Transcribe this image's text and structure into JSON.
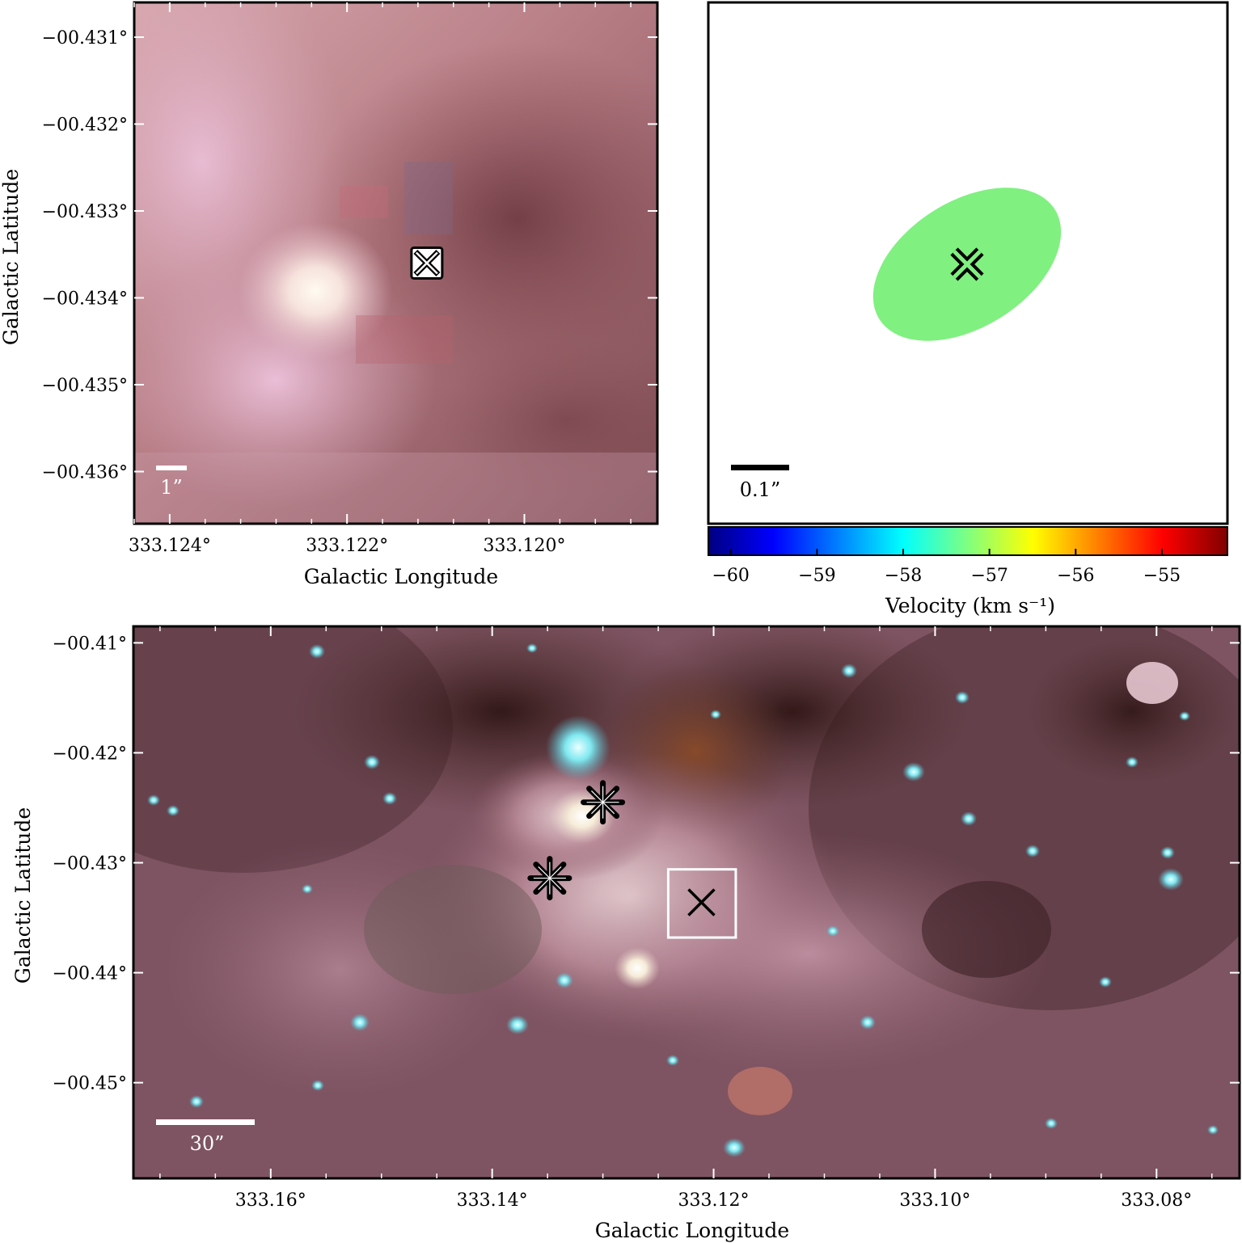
{
  "panels": {
    "top_left": {
      "ylabel": "Galactic Latitude",
      "xlabel": "Galactic Longitude",
      "yticks": [
        {
          "value": -0.431,
          "label": "−00.431°"
        },
        {
          "value": -0.432,
          "label": "−00.432°"
        },
        {
          "value": -0.433,
          "label": "−00.433°"
        },
        {
          "value": -0.434,
          "label": "−00.434°"
        },
        {
          "value": -0.435,
          "label": "−00.435°"
        },
        {
          "value": -0.436,
          "label": "−00.436°"
        }
      ],
      "xticks": [
        {
          "value": 333.124,
          "label": "333.124°"
        },
        {
          "value": 333.122,
          "label": "333.122°"
        },
        {
          "value": 333.12,
          "label": "333.120°"
        }
      ],
      "scale_bar": "1”"
    },
    "top_right": {
      "scale_bar": "0.1”",
      "colorbar": {
        "label": "Velocity (km s⁻¹)",
        "ticks": [
          {
            "value": -60,
            "label": "−60"
          },
          {
            "value": -59,
            "label": "−59"
          },
          {
            "value": -58,
            "label": "−58"
          },
          {
            "value": -57,
            "label": "−57"
          },
          {
            "value": -56,
            "label": "−56"
          },
          {
            "value": -55,
            "label": "−55"
          }
        ],
        "range": [
          -60.26,
          -54.24
        ],
        "colors": [
          "#000080",
          "#0000ff",
          "#0080ff",
          "#00ffff",
          "#80ff80",
          "#ffff00",
          "#ff8000",
          "#ff0000",
          "#800000"
        ]
      },
      "ellipse_color": "#80f080"
    },
    "bottom": {
      "ylabel": "Galactic Latitude",
      "xlabel": "Galactic Longitude",
      "yticks": [
        {
          "value": -0.41,
          "label": "−00.41°"
        },
        {
          "value": -0.42,
          "label": "−00.42°"
        },
        {
          "value": -0.43,
          "label": "−00.43°"
        },
        {
          "value": -0.44,
          "label": "−00.44°"
        },
        {
          "value": -0.45,
          "label": "−00.45°"
        }
      ],
      "xticks": [
        {
          "value": 333.16,
          "label": "333.16°"
        },
        {
          "value": 333.14,
          "label": "333.14°"
        },
        {
          "value": 333.12,
          "label": "333.12°"
        },
        {
          "value": 333.1,
          "label": "333.10°"
        },
        {
          "value": 333.08,
          "label": "333.08°"
        }
      ],
      "scale_bar": "30”"
    }
  },
  "chart_data": [
    {
      "type": "scatter",
      "panel": "top_left",
      "xlabel": "Galactic Longitude",
      "ylabel": "Galactic Latitude",
      "xlim": [
        333.1244,
        333.1185
      ],
      "ylim": [
        -0.4366,
        -0.4306
      ],
      "points": [
        {
          "x": 333.1211,
          "y": -0.4336,
          "marker": "x-in-box"
        }
      ]
    },
    {
      "type": "scatter",
      "panel": "top_right",
      "points": [
        {
          "velocity_kms": -57.3,
          "marker": "x"
        }
      ],
      "colorbar_label": "Velocity (km s⁻¹)"
    },
    {
      "type": "scatter",
      "panel": "bottom",
      "xlabel": "Galactic Longitude",
      "ylabel": "Galactic Latitude",
      "xlim": [
        333.1724,
        333.0725
      ],
      "ylim": [
        -0.4587,
        -0.4085
      ],
      "points": [
        {
          "x": 333.13,
          "y": -0.4245,
          "marker": "asterisk"
        },
        {
          "x": 333.1348,
          "y": -0.4314,
          "marker": "asterisk"
        },
        {
          "x": 333.1211,
          "y": -0.4336,
          "marker": "x"
        }
      ],
      "box": {
        "x": [
          333.1241,
          333.118
        ],
        "y": [
          -0.4306,
          -0.4368
        ]
      }
    }
  ]
}
